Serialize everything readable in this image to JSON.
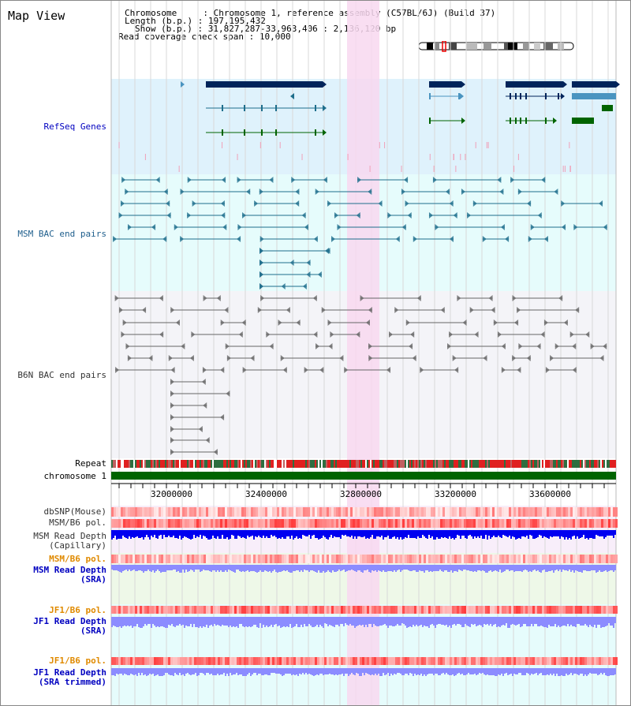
{
  "title": "Map View",
  "info": {
    "chromosome_label": "Chromosome",
    "chromosome_value": "Chromosome 1, reference assembly (C57BL/6J) (Build 37)",
    "length_label": "Length (b.p.)",
    "length_value": "197,195,432",
    "show_label": "Show (b.p.)",
    "show_value": "31,827,287-33,963,406 : 2,136,120 bp",
    "span_label": "Read coverage check span",
    "span_value": "10,000"
  },
  "tracks": {
    "refseq": "RefSeq Genes",
    "msm_bac": "MSM BAC end pairs",
    "b6n_bac": "B6N BAC end pairs",
    "repeat": "Repeat",
    "chromosome": "chromosome 1",
    "dbsnp": "dbSNP(Mouse)",
    "msm_b6_pol": "MSM/B6 pol.",
    "msm_depth_cap_1": "MSM Read Depth",
    "msm_depth_cap_2": "(Capillary)",
    "msm_b6_pol_sra": "MSM/B6 pol.",
    "msm_depth_sra_1": "MSM Read Depth",
    "msm_depth_sra_2": "(SRA)",
    "jf1_b6_pol": "JF1/B6 pol.",
    "jf1_depth_1": "JF1 Read Depth",
    "jf1_depth_2": "(SRA)",
    "jf1_b6_pol_2": "JF1/B6 pol.",
    "jf1_trim_1": "JF1 Read Depth",
    "jf1_trim_2": "(SRA trimmed)"
  },
  "axis": {
    "ticks": [
      "32000000",
      "32400000",
      "32800000",
      "33200000",
      "33600000"
    ]
  },
  "colors": {
    "refseq_bg": "#dff2fc",
    "msm_bg": "#e6fcfc",
    "b6n_bg": "#f4f4f8",
    "highlight": "#f8d8f0",
    "gene_dark": "#00245a",
    "gene_mid": "#4a94c0",
    "gene_green": "#006400",
    "bac_msm": "#1e6e8c",
    "bac_b6n": "#666666",
    "chrom_bar": "#006400",
    "depth_blue": "#0000f0",
    "depth_light": "#8c8cff",
    "label_blue": "#0000c0",
    "label_orange": "#e08a00"
  }
}
